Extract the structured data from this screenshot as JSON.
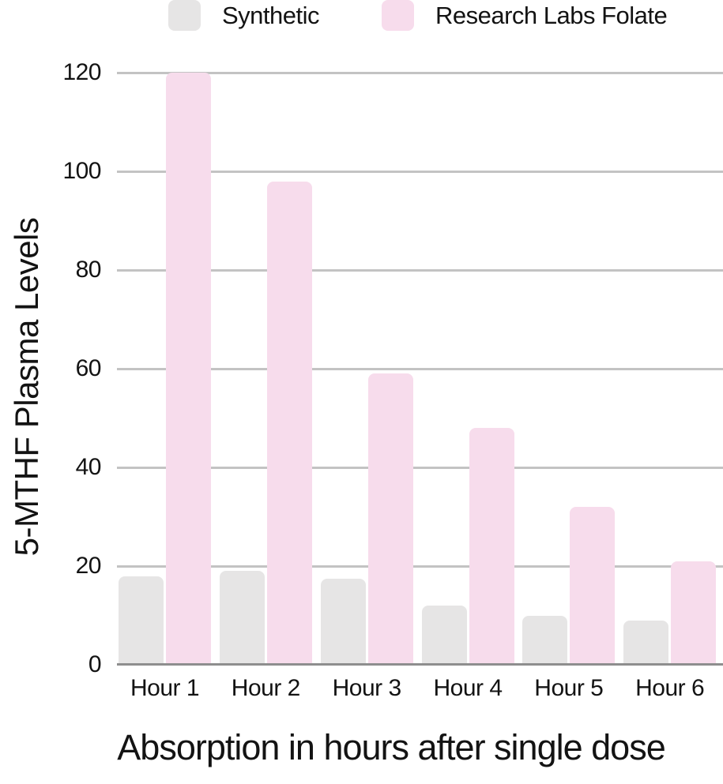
{
  "chart_data": {
    "type": "bar",
    "categories": [
      "Hour 1",
      "Hour 2",
      "Hour 3",
      "Hour 4",
      "Hour 5",
      "Hour 6"
    ],
    "series": [
      {
        "name": "Synthetic",
        "color": "#e6e5e5",
        "values": [
          18,
          19,
          17.5,
          12,
          10,
          9
        ]
      },
      {
        "name": "Research Labs Folate",
        "color": "#f7dcec",
        "values": [
          120,
          98,
          59,
          48,
          32,
          21
        ]
      }
    ],
    "title": "",
    "xlabel": "Absorption in hours after single dose",
    "ylabel": "5-MTHF Plasma Levels",
    "ylim": [
      0,
      120
    ],
    "yticks": [
      0,
      20,
      40,
      60,
      80,
      100,
      120
    ],
    "grid": true,
    "legend_position": "top"
  },
  "colors": {
    "gridline": "#c3c3c3",
    "axis_line": "#8e8e8e",
    "text": "#131313",
    "background": "#ffffff"
  }
}
